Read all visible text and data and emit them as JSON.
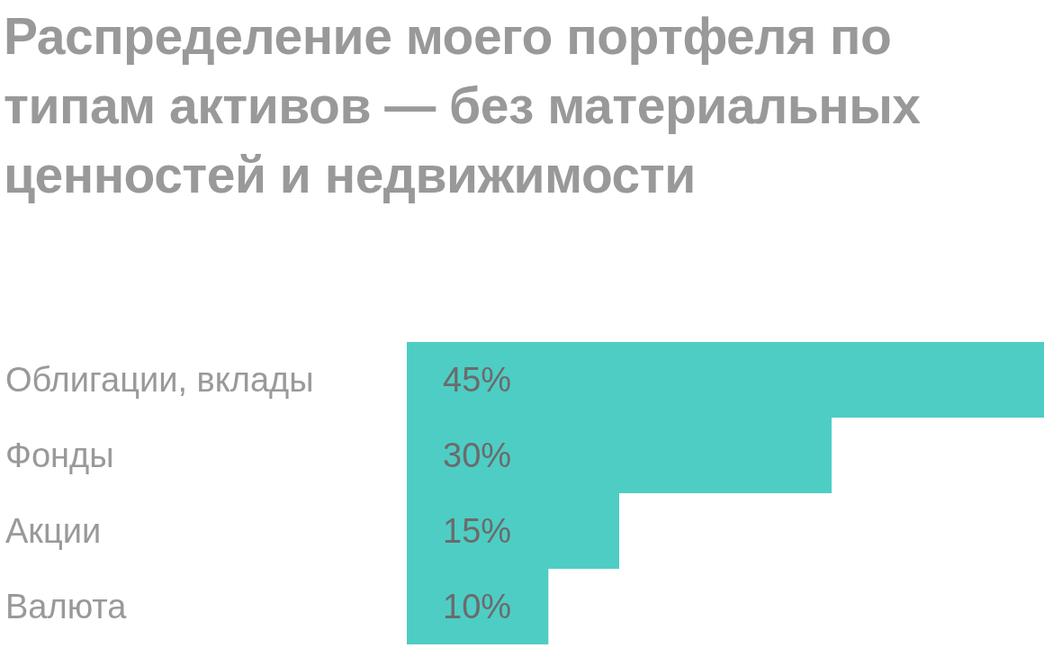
{
  "chart_data": {
    "type": "bar",
    "orientation": "horizontal",
    "title": "Распределение моего портфеля по типам активов — без материальных ценностей и недвижимости",
    "categories": [
      "Облигации, вклады",
      "Фонды",
      "Акции",
      "Валюта"
    ],
    "values": [
      45,
      30,
      15,
      10
    ],
    "value_labels": [
      "45%",
      "30%",
      "15%",
      "10%"
    ],
    "color": "#4ecdc4",
    "tick_labels": "y",
    "grid": false,
    "legend": false
  }
}
